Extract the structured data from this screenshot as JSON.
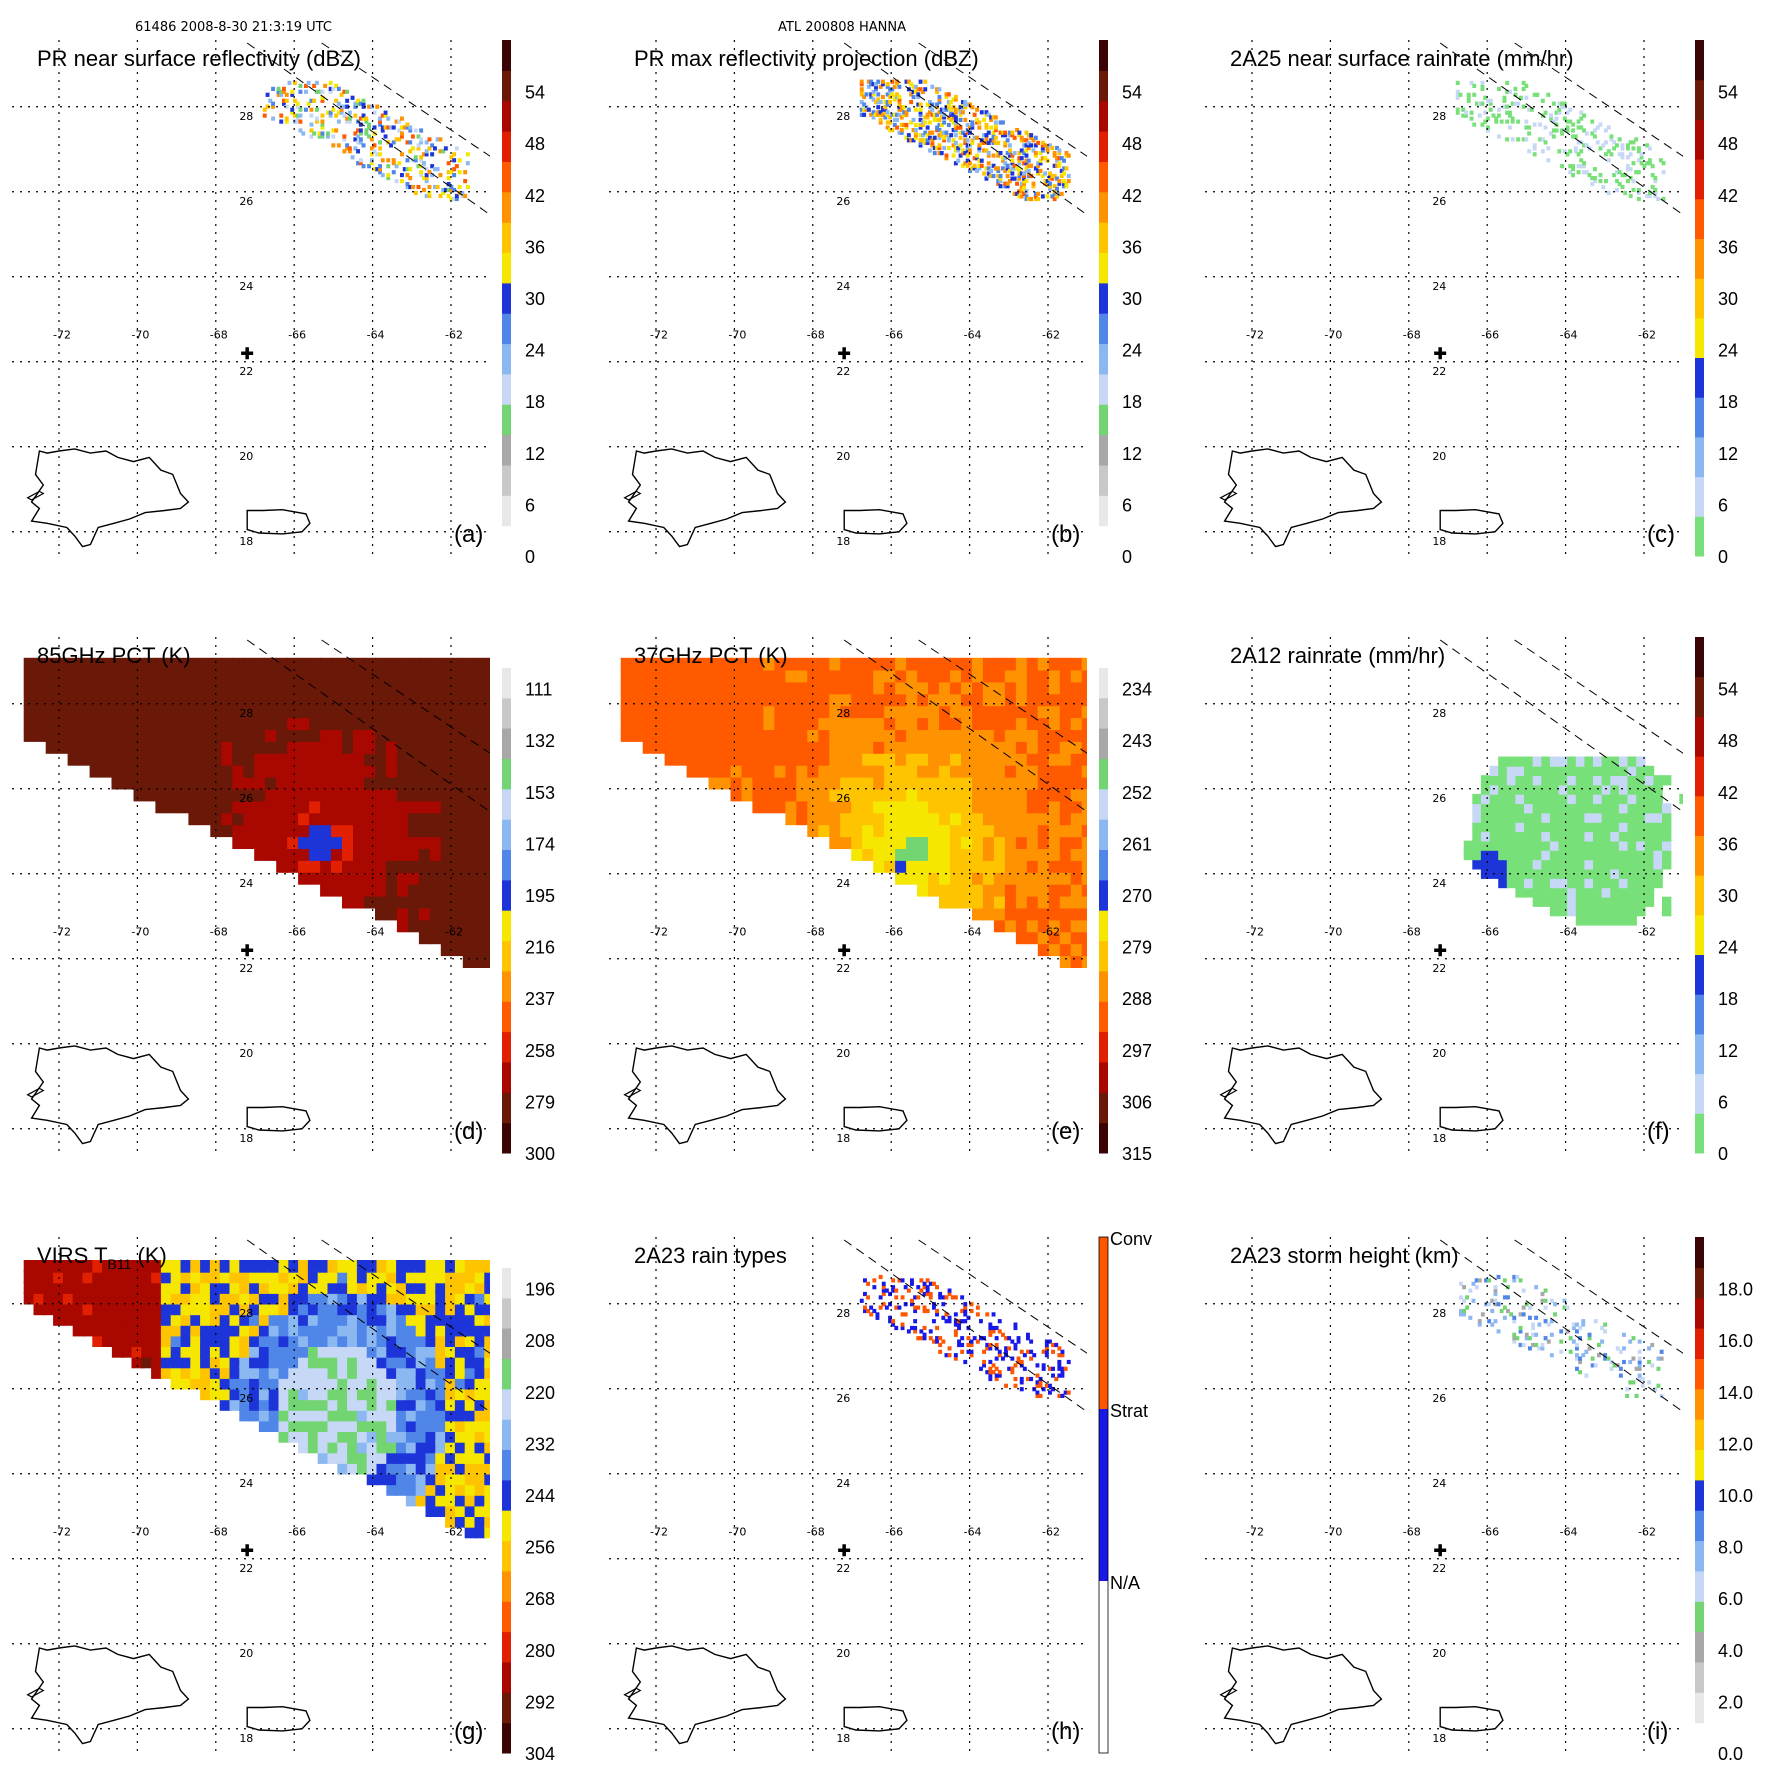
{
  "header": {
    "left": "61486 2008-8-30 21:3:19 UTC",
    "center": "ATL 200808 HANNA"
  },
  "map": {
    "lon_labels": [
      "-72",
      "-70",
      "-68",
      "-66",
      "-64",
      "-62"
    ],
    "lat_labels": [
      "28",
      "26",
      "24",
      "22",
      "20",
      "18"
    ],
    "center_mark": {
      "lon": -67.2,
      "lat": 22.2
    }
  },
  "colors": {
    "ramp_main": [
      "#ffffff",
      "#e8e8e8",
      "#c8c8c8",
      "#a8a8a8",
      "#72d572",
      "#c6d8f6",
      "#8cb8f2",
      "#4f86e8",
      "#1d35d8",
      "#f6e700",
      "#ffc400",
      "#ff9200",
      "#ff5a00",
      "#e02000",
      "#a80800",
      "#6a1808",
      "#3a0404"
    ],
    "ramp_rain": [
      "#78e078",
      "#c6d8f6",
      "#8cb8f2",
      "#4f86e8",
      "#1d35d8",
      "#f6e700",
      "#ffc400",
      "#ff9200",
      "#ff5a00",
      "#e02000",
      "#a80800",
      "#6a1808",
      "#3a0404"
    ],
    "ramp_temp": [
      "#3a0404",
      "#6a1808",
      "#a80800",
      "#e02000",
      "#ff5a00",
      "#ff9200",
      "#ffc400",
      "#f6e700",
      "#1d35d8",
      "#4f86e8",
      "#8cb8f2",
      "#c6d8f6",
      "#72d572",
      "#a8a8a8",
      "#c8c8c8",
      "#e8e8e8",
      "#ffffff"
    ],
    "rain_types": [
      "#ffffff",
      "#1818e8",
      "#ff5500"
    ]
  },
  "chart_data": [
    {
      "id": "a",
      "type": "heatmap",
      "panel_label": "(a)",
      "title": "PR near surface reflectivity (dBZ)",
      "field": "pr_near_surface",
      "colorbar": {
        "ticks": [
          "0",
          "6",
          "12",
          "18",
          "24",
          "30",
          "36",
          "42",
          "48",
          "54"
        ],
        "ramp": "ramp_main",
        "tick_values": [
          0,
          6,
          12,
          18,
          24,
          30,
          36,
          42,
          48,
          54
        ],
        "range": [
          0,
          60
        ]
      }
    },
    {
      "id": "b",
      "type": "heatmap",
      "panel_label": "(b)",
      "title": "PR max reflectivity projection (dBZ)",
      "field": "pr_max",
      "colorbar": {
        "ticks": [
          "0",
          "6",
          "12",
          "18",
          "24",
          "30",
          "36",
          "42",
          "48",
          "54"
        ],
        "ramp": "ramp_main",
        "tick_values": [
          0,
          6,
          12,
          18,
          24,
          30,
          36,
          42,
          48,
          54
        ],
        "range": [
          0,
          60
        ]
      }
    },
    {
      "id": "c",
      "type": "heatmap",
      "panel_label": "(c)",
      "title": "2A25 near surface rainrate (mm/hr)",
      "field": "rain_2a25",
      "colorbar": {
        "ticks": [
          "0",
          "6",
          "12",
          "18",
          "24",
          "30",
          "36",
          "42",
          "48",
          "54"
        ],
        "ramp": "ramp_rain",
        "tick_values": [
          0,
          6,
          12,
          18,
          24,
          30,
          36,
          42,
          48,
          54
        ],
        "range": [
          0,
          60
        ]
      }
    },
    {
      "id": "d",
      "type": "heatmap",
      "panel_label": "(d)",
      "title": "85GHz PCT (K)",
      "field": "pct85",
      "colorbar": {
        "ticks": [
          "300",
          "279",
          "258",
          "237",
          "216",
          "195",
          "174",
          "153",
          "132",
          "111"
        ],
        "ramp": "ramp_temp_rev",
        "tick_values": [
          300,
          279,
          258,
          237,
          216,
          195,
          174,
          153,
          132,
          111
        ],
        "range": [
          300,
          90
        ]
      }
    },
    {
      "id": "e",
      "type": "heatmap",
      "panel_label": "(e)",
      "title": "37GHz PCT (K)",
      "field": "pct37",
      "colorbar": {
        "ticks": [
          "315",
          "306",
          "297",
          "288",
          "279",
          "270",
          "261",
          "252",
          "243",
          "234"
        ],
        "ramp": "ramp_temp_rev",
        "tick_values": [
          315,
          306,
          297,
          288,
          279,
          270,
          261,
          252,
          243,
          234
        ],
        "range": [
          315,
          225
        ]
      }
    },
    {
      "id": "f",
      "type": "heatmap",
      "panel_label": "(f)",
      "title": "2A12 rainrate (mm/hr)",
      "field": "rain_2a12",
      "colorbar": {
        "ticks": [
          "0",
          "6",
          "12",
          "18",
          "24",
          "30",
          "36",
          "42",
          "48",
          "54"
        ],
        "ramp": "ramp_rain",
        "tick_values": [
          0,
          6,
          12,
          18,
          24,
          30,
          36,
          42,
          48,
          54
        ],
        "range": [
          0,
          60
        ]
      }
    },
    {
      "id": "g",
      "type": "heatmap",
      "panel_label": "(g)",
      "title": "VIRS T",
      "title_sub": "B11",
      "title_end": " (K)",
      "field": "virs",
      "colorbar": {
        "ticks": [
          "304",
          "292",
          "280",
          "268",
          "256",
          "244",
          "232",
          "220",
          "208",
          "196"
        ],
        "ramp": "ramp_temp_rev",
        "tick_values": [
          304,
          292,
          280,
          268,
          256,
          244,
          232,
          220,
          208,
          196
        ],
        "range": [
          304,
          184
        ]
      }
    },
    {
      "id": "h",
      "type": "heatmap",
      "panel_label": "(h)",
      "title": "2A23 rain types",
      "field": "raintype",
      "colorbar": {
        "ticks": [
          "N/A",
          "Strat",
          "Conv"
        ],
        "ramp": "rain_types",
        "categorical": true
      }
    },
    {
      "id": "i",
      "type": "heatmap",
      "panel_label": "(i)",
      "title": "2A23 storm height (km)",
      "field": "stormheight",
      "colorbar": {
        "ticks": [
          "0.0",
          "2.0",
          "4.0",
          "6.0",
          "8.0",
          "10.0",
          "12.0",
          "14.0",
          "16.0",
          "18.0"
        ],
        "ramp": "ramp_main",
        "tick_values": [
          0,
          2,
          4,
          6,
          8,
          10,
          12,
          14,
          16,
          18
        ],
        "range": [
          0,
          20
        ]
      }
    }
  ]
}
